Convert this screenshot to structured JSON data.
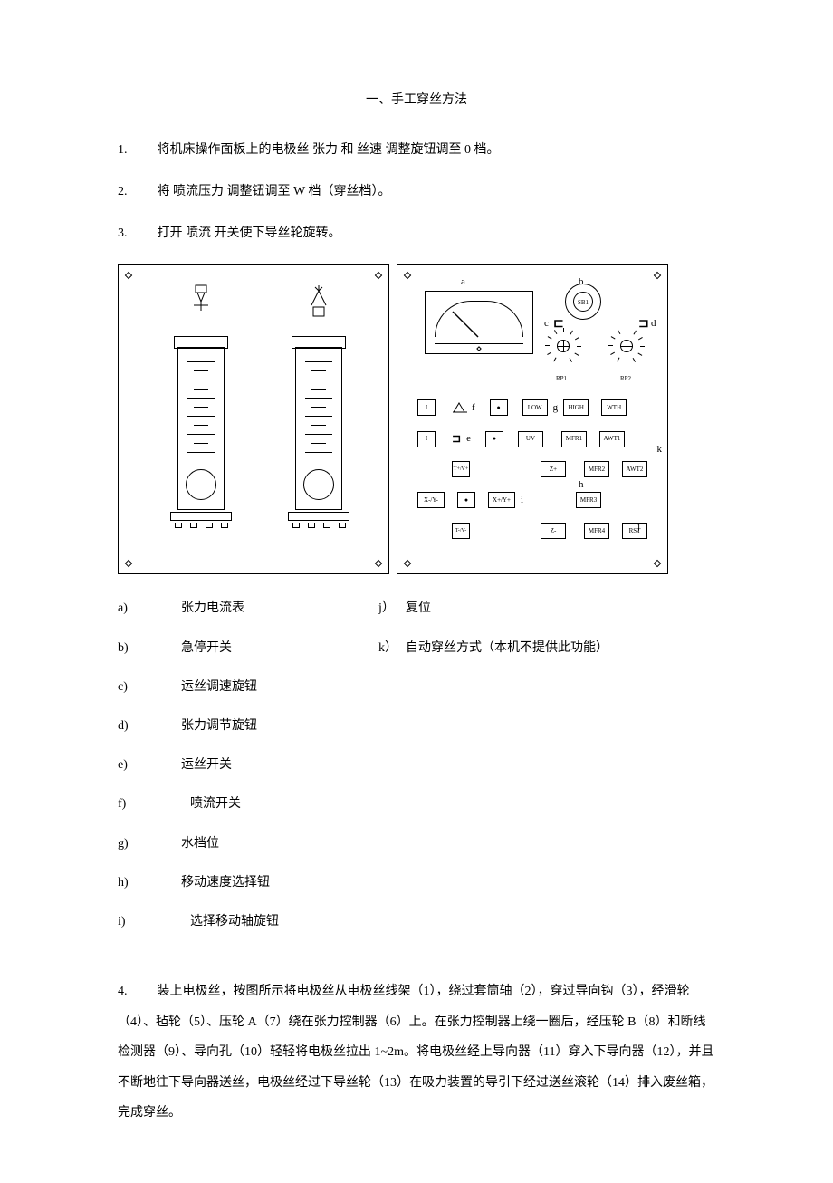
{
  "title": "一、手工穿丝方法",
  "steps": [
    {
      "num": "1.",
      "text": "将机床操作面板上的电极丝 张力 和 丝速 调整旋钮调至 0 档。"
    },
    {
      "num": "2.",
      "text": "将 喷流压力 调整钮调至 W 档（穿丝档）。"
    },
    {
      "num": "3.",
      "text": "打开 喷流 开关使下导丝轮旋转。"
    }
  ],
  "panel_right": {
    "labels": {
      "a": "a",
      "b": "b",
      "c": "c",
      "d": "d",
      "e": "e",
      "f": "f",
      "g": "g",
      "h": "h",
      "i": "i",
      "j": "j",
      "k": "k"
    },
    "estop_label": "SB1",
    "dial_labels": {
      "rp1": "RP1",
      "rp2": "RP2"
    },
    "buttons": {
      "row1": [
        "I",
        "",
        "●",
        "LOW",
        "HIGH",
        "WTH"
      ],
      "row2": [
        "I",
        "",
        "●",
        "UV",
        "MFR1",
        "AWT1"
      ],
      "row3_tv": "T+/V+",
      "row3": [
        "Z+",
        "MFR2",
        "AWT2"
      ],
      "row4_left": "X-/Y-",
      "row4_dot": "●",
      "row4_right": "X+/Y+",
      "row4_mfr": "MFR3",
      "row5_tv": "T-/V-",
      "row5": [
        "Z-",
        "MFR4",
        "RST"
      ]
    }
  },
  "legend_left": [
    {
      "key": "a)",
      "val": "张力电流表"
    },
    {
      "key": "b)",
      "val": "急停开关"
    },
    {
      "key": "c)",
      "val": "运丝调速旋钮"
    },
    {
      "key": "d)",
      "val": "张力调节旋钮"
    },
    {
      "key": "e)",
      "val": "运丝开关"
    },
    {
      "key": "f)",
      "val": "喷流开关"
    },
    {
      "key": "g)",
      "val": "水档位"
    },
    {
      "key": "h)",
      "val": "移动速度选择钮"
    },
    {
      "key": "i)",
      "val": "选择移动轴旋钮"
    }
  ],
  "legend_right": [
    {
      "key": "j）",
      "val": "复位"
    },
    {
      "key": "k）",
      "val": "自动穿丝方式（本机不提供此功能）"
    }
  ],
  "step4": {
    "num": "4.",
    "text": "装上电极丝，按图所示将电极丝从电极丝线架（1），绕过套筒轴（2），穿过导向钩（3），经滑轮（4）、毡轮（5）、压轮 A（7）绕在张力控制器（6）上。在张力控制器上绕一圈后，经压轮 B（8）和断线检测器（9）、导向孔（10）轻轻将电极丝拉出 1~2m。将电极丝经上导向器（11）穿入下导向器（12），并且不断地往下导向器送丝，电极丝经过下导丝轮（13）在吸力装置的导引下经过送丝滚轮（14）排入废丝箱，完成穿丝。"
  }
}
